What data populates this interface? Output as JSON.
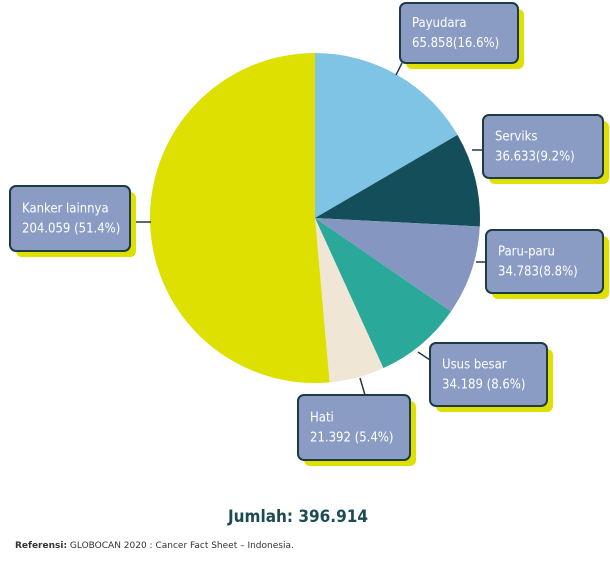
{
  "chart_data": {
    "type": "pie",
    "categories": [
      "Payudara",
      "Serviks",
      "Paru-paru",
      "Usus besar",
      "Hati",
      "Kanker lainnya"
    ],
    "values": [
      65858,
      36633,
      34783,
      34189,
      21392,
      204059
    ],
    "value_labels": [
      "65.858(16.6%)",
      "36.633(9.2%)",
      "34.783(8.8%)",
      "34.189 (8.6%)",
      "21.392 (5.4%)",
      "204.059 (51.4%)"
    ],
    "colors": [
      "#7fc4e4",
      "#134e5a",
      "#8597c0",
      "#2aa89a",
      "#efe6d6",
      "#dde000"
    ],
    "total_label": "Jumlah: 396.914",
    "reference_label": "Referensi:",
    "reference": " GLOBOCAN 2020 : Cancer Fact Sheet – Indonesia."
  }
}
